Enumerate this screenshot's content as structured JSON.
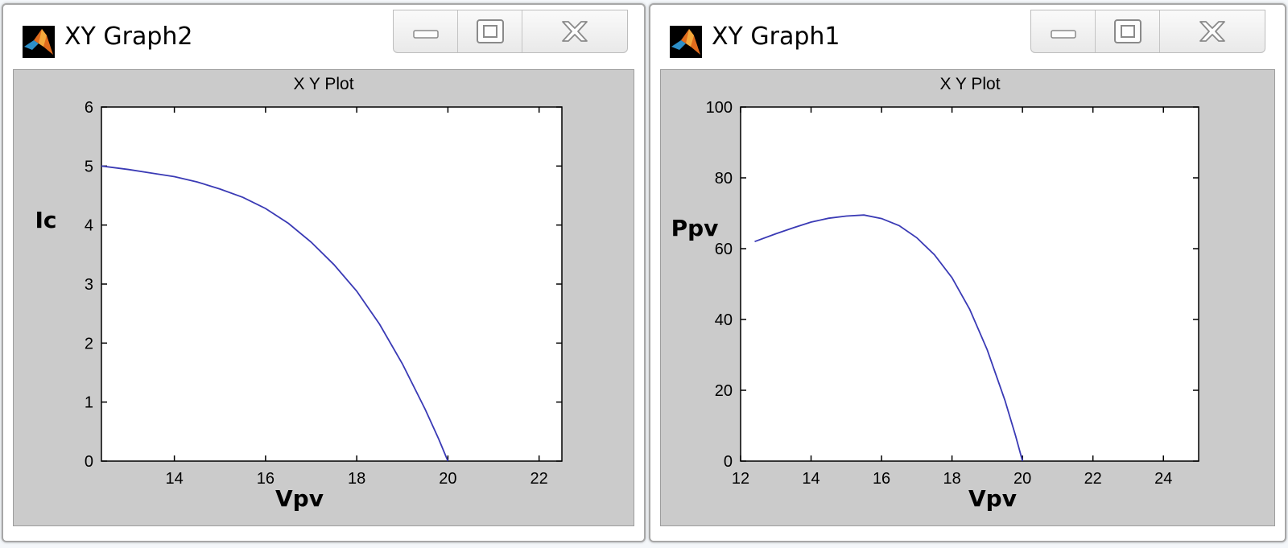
{
  "windows": [
    {
      "title": "XY Graph2",
      "icon": "matlab-icon",
      "buttons": {
        "minimize": "minimize-icon",
        "maximize": "maximize-icon",
        "close": "close-icon"
      },
      "chart_data": {
        "type": "line",
        "title": "X Y Plot",
        "xlabel": "Vpv",
        "ylabel": "Ic",
        "xlim": [
          12.4,
          22.5
        ],
        "ylim": [
          0,
          6
        ],
        "xticks": [
          14,
          16,
          18,
          20,
          22
        ],
        "yticks": [
          0,
          1,
          2,
          3,
          4,
          5,
          6
        ],
        "grid": false,
        "line_color": "#3a3ab5",
        "series": [
          {
            "x": [
              12.4,
              13.0,
              13.5,
              14.0,
              14.5,
              15.0,
              15.5,
              16.0,
              16.5,
              17.0,
              17.5,
              18.0,
              18.5,
              19.0,
              19.5,
              19.8,
              20.0
            ],
            "y": [
              5.0,
              4.94,
              4.88,
              4.82,
              4.73,
              4.61,
              4.47,
              4.28,
              4.03,
              3.71,
              3.33,
              2.88,
              2.32,
              1.65,
              0.88,
              0.37,
              0.0
            ]
          }
        ]
      }
    },
    {
      "title": "XY Graph1",
      "icon": "matlab-icon",
      "buttons": {
        "minimize": "minimize-icon",
        "maximize": "maximize-icon",
        "close": "close-icon"
      },
      "chart_data": {
        "type": "line",
        "title": "X Y Plot",
        "xlabel": "Vpv",
        "ylabel": "Ppv",
        "xlim": [
          12,
          25
        ],
        "ylim": [
          0,
          100
        ],
        "xticks": [
          12,
          14,
          16,
          18,
          20,
          22,
          24
        ],
        "yticks": [
          0,
          20,
          40,
          60,
          80,
          100
        ],
        "grid": false,
        "line_color": "#3a3ab5",
        "series": [
          {
            "x": [
              12.4,
              13.0,
              13.5,
              14.0,
              14.5,
              15.0,
              15.5,
              16.0,
              16.5,
              17.0,
              17.5,
              18.0,
              18.5,
              19.0,
              19.5,
              19.8,
              20.0
            ],
            "y": [
              62.0,
              64.2,
              65.9,
              67.5,
              68.6,
              69.2,
              69.5,
              68.5,
              66.5,
              63.1,
              58.3,
              51.8,
              42.9,
              31.4,
              17.2,
              7.3,
              0.0
            ]
          }
        ]
      }
    }
  ]
}
